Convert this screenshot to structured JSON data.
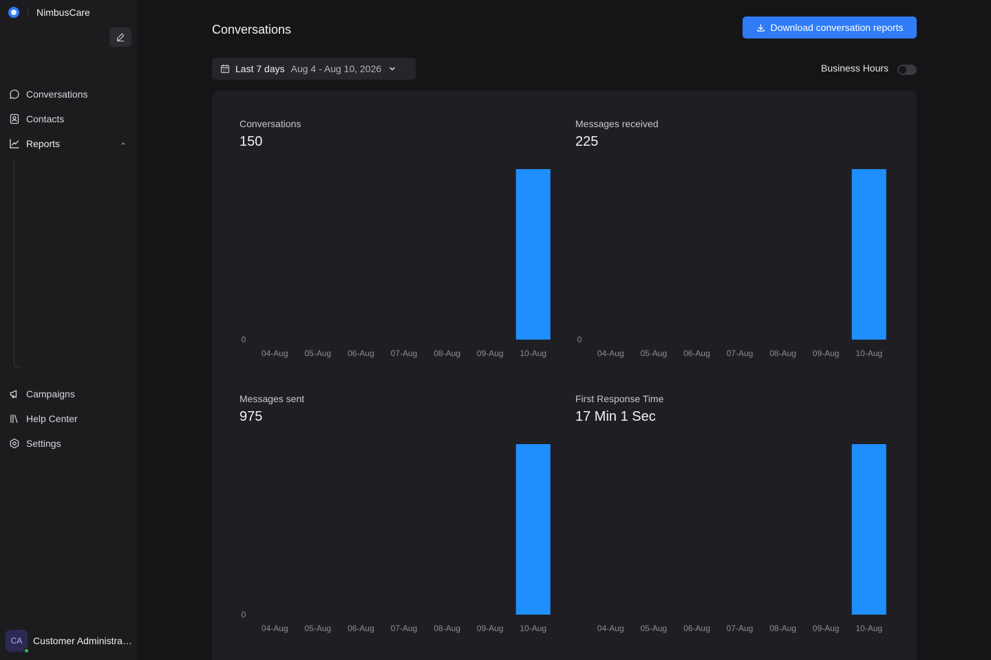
{
  "brand": {
    "name": "NimbusCare"
  },
  "sidebar": {
    "items": [
      {
        "label": "Conversations",
        "icon": "chat-bubble-icon"
      },
      {
        "label": "Contacts",
        "icon": "contact-card-icon"
      },
      {
        "label": "Reports",
        "icon": "line-chart-icon"
      },
      {
        "label": "Campaigns",
        "icon": "megaphone-icon"
      },
      {
        "label": "Help Center",
        "icon": "library-icon"
      },
      {
        "label": "Settings",
        "icon": "gear-icon"
      }
    ],
    "user": {
      "initials": "CA",
      "name": "Customer Administrator",
      "status": "online"
    }
  },
  "header": {
    "title": "Conversations",
    "download_label": "Download conversation reports"
  },
  "filters": {
    "range_label": "Last 7 days",
    "range_dates": "Aug 4 - Aug 10, 2026",
    "business_hours_label": "Business Hours",
    "business_hours_enabled": false
  },
  "colors": {
    "accent": "#2f7cf6",
    "bar": "#1f8fff",
    "background": "#151517",
    "panel": "#1f1f23"
  },
  "chart_data": [
    {
      "type": "bar",
      "title": "Conversations",
      "summary_value": "150",
      "categories": [
        "04-Aug",
        "05-Aug",
        "06-Aug",
        "07-Aug",
        "08-Aug",
        "09-Aug",
        "10-Aug"
      ],
      "values": [
        0,
        0,
        0,
        0,
        0,
        0,
        150
      ],
      "ytick": "0",
      "ylim": [
        0,
        150
      ]
    },
    {
      "type": "bar",
      "title": "Messages received",
      "summary_value": "225",
      "categories": [
        "04-Aug",
        "05-Aug",
        "06-Aug",
        "07-Aug",
        "08-Aug",
        "09-Aug",
        "10-Aug"
      ],
      "values": [
        0,
        0,
        0,
        0,
        0,
        0,
        225
      ],
      "ytick": "0",
      "ylim": [
        0,
        225
      ]
    },
    {
      "type": "bar",
      "title": "Messages sent",
      "summary_value": "975",
      "categories": [
        "04-Aug",
        "05-Aug",
        "06-Aug",
        "07-Aug",
        "08-Aug",
        "09-Aug",
        "10-Aug"
      ],
      "values": [
        0,
        0,
        0,
        0,
        0,
        0,
        975
      ],
      "ytick": "0",
      "ylim": [
        0,
        975
      ]
    },
    {
      "type": "bar",
      "title": "First Response Time",
      "summary_value": "17 Min 1 Sec",
      "categories": [
        "04-Aug",
        "05-Aug",
        "06-Aug",
        "07-Aug",
        "08-Aug",
        "09-Aug",
        "10-Aug"
      ],
      "values": [
        0,
        0,
        0,
        0,
        0,
        0,
        1021
      ],
      "ytick": "",
      "ylim": [
        0,
        1021
      ]
    }
  ]
}
